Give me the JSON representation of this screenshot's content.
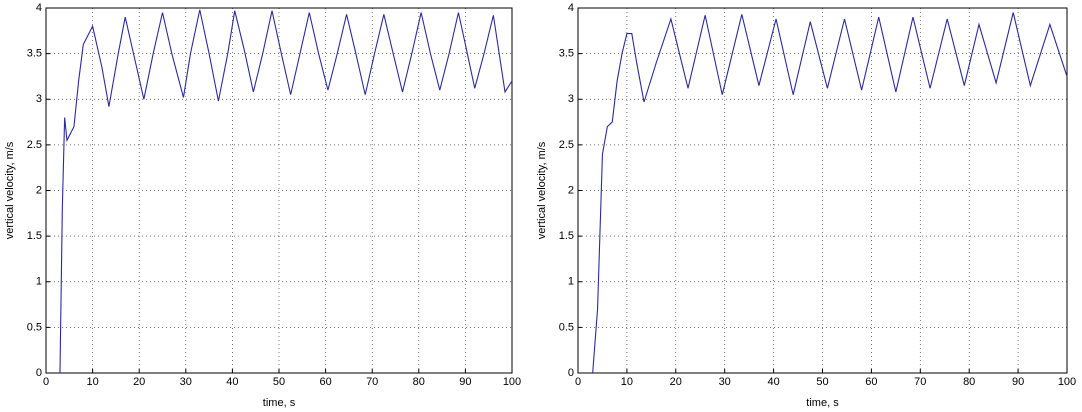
{
  "chart_data": [
    {
      "type": "line",
      "xlabel": "time, s",
      "ylabel": "vertical velocity, m/s",
      "xlim": [
        0,
        100
      ],
      "xticks": [
        0,
        10,
        20,
        30,
        40,
        50,
        60,
        70,
        80,
        90,
        100
      ],
      "ylim": [
        0,
        4
      ],
      "yticks": [
        0,
        0.5,
        1,
        1.5,
        2,
        2.5,
        3,
        3.5,
        4
      ],
      "grid": true,
      "series": [
        {
          "color": "#2b2ba0",
          "x": [
            3,
            3.5,
            4,
            4.5,
            5,
            6,
            7,
            8,
            10,
            12,
            13.5,
            15.5,
            17,
            19,
            21,
            23,
            25,
            27,
            29.5,
            31,
            33,
            35,
            37,
            39,
            40.5,
            42.5,
            44.5,
            46.5,
            48.5,
            50.5,
            52.5,
            54.5,
            56.5,
            58.5,
            60.5,
            62.5,
            64.5,
            66.5,
            68.5,
            70.5,
            72.5,
            74.5,
            76.5,
            78.5,
            80.5,
            82.5,
            84.5,
            86.5,
            88.5,
            90,
            92,
            94,
            96,
            98.5,
            100
          ],
          "values": [
            0,
            1.8,
            2.8,
            2.55,
            2.6,
            2.7,
            3.2,
            3.6,
            3.8,
            3.35,
            2.92,
            3.5,
            3.9,
            3.45,
            3.0,
            3.5,
            3.95,
            3.5,
            3.02,
            3.5,
            3.98,
            3.5,
            2.98,
            3.5,
            3.97,
            3.55,
            3.08,
            3.5,
            3.97,
            3.5,
            3.05,
            3.5,
            3.95,
            3.5,
            3.1,
            3.5,
            3.93,
            3.5,
            3.05,
            3.5,
            3.93,
            3.5,
            3.08,
            3.5,
            3.95,
            3.5,
            3.1,
            3.5,
            3.95,
            3.6,
            3.12,
            3.5,
            3.92,
            3.08,
            3.2
          ]
        }
      ]
    },
    {
      "type": "line",
      "xlabel": "time, s",
      "ylabel": "vertical velocity, m/s",
      "xlim": [
        0,
        100
      ],
      "xticks": [
        0,
        10,
        20,
        30,
        40,
        50,
        60,
        70,
        80,
        90,
        100
      ],
      "ylim": [
        0,
        4
      ],
      "yticks": [
        0,
        0.5,
        1,
        1.5,
        2,
        2.5,
        3,
        3.5,
        4
      ],
      "grid": true,
      "series": [
        {
          "color": "#2b2ba0",
          "x": [
            3,
            4,
            5,
            6,
            7,
            8,
            9,
            10,
            11,
            12,
            13.5,
            16,
            19,
            22.5,
            26,
            29.5,
            33.5,
            37,
            40.5,
            44,
            47.5,
            51,
            54.5,
            58,
            61.5,
            65,
            68.5,
            72,
            75.5,
            79,
            82,
            85.5,
            89,
            92.5,
            96.5,
            100
          ],
          "values": [
            0,
            0.7,
            2.4,
            2.7,
            2.75,
            3.2,
            3.5,
            3.72,
            3.72,
            3.4,
            2.97,
            3.4,
            3.88,
            3.12,
            3.92,
            3.05,
            3.93,
            3.15,
            3.88,
            3.05,
            3.85,
            3.12,
            3.88,
            3.1,
            3.9,
            3.08,
            3.9,
            3.12,
            3.88,
            3.15,
            3.82,
            3.18,
            3.95,
            3.15,
            3.82,
            3.25
          ]
        }
      ]
    }
  ]
}
